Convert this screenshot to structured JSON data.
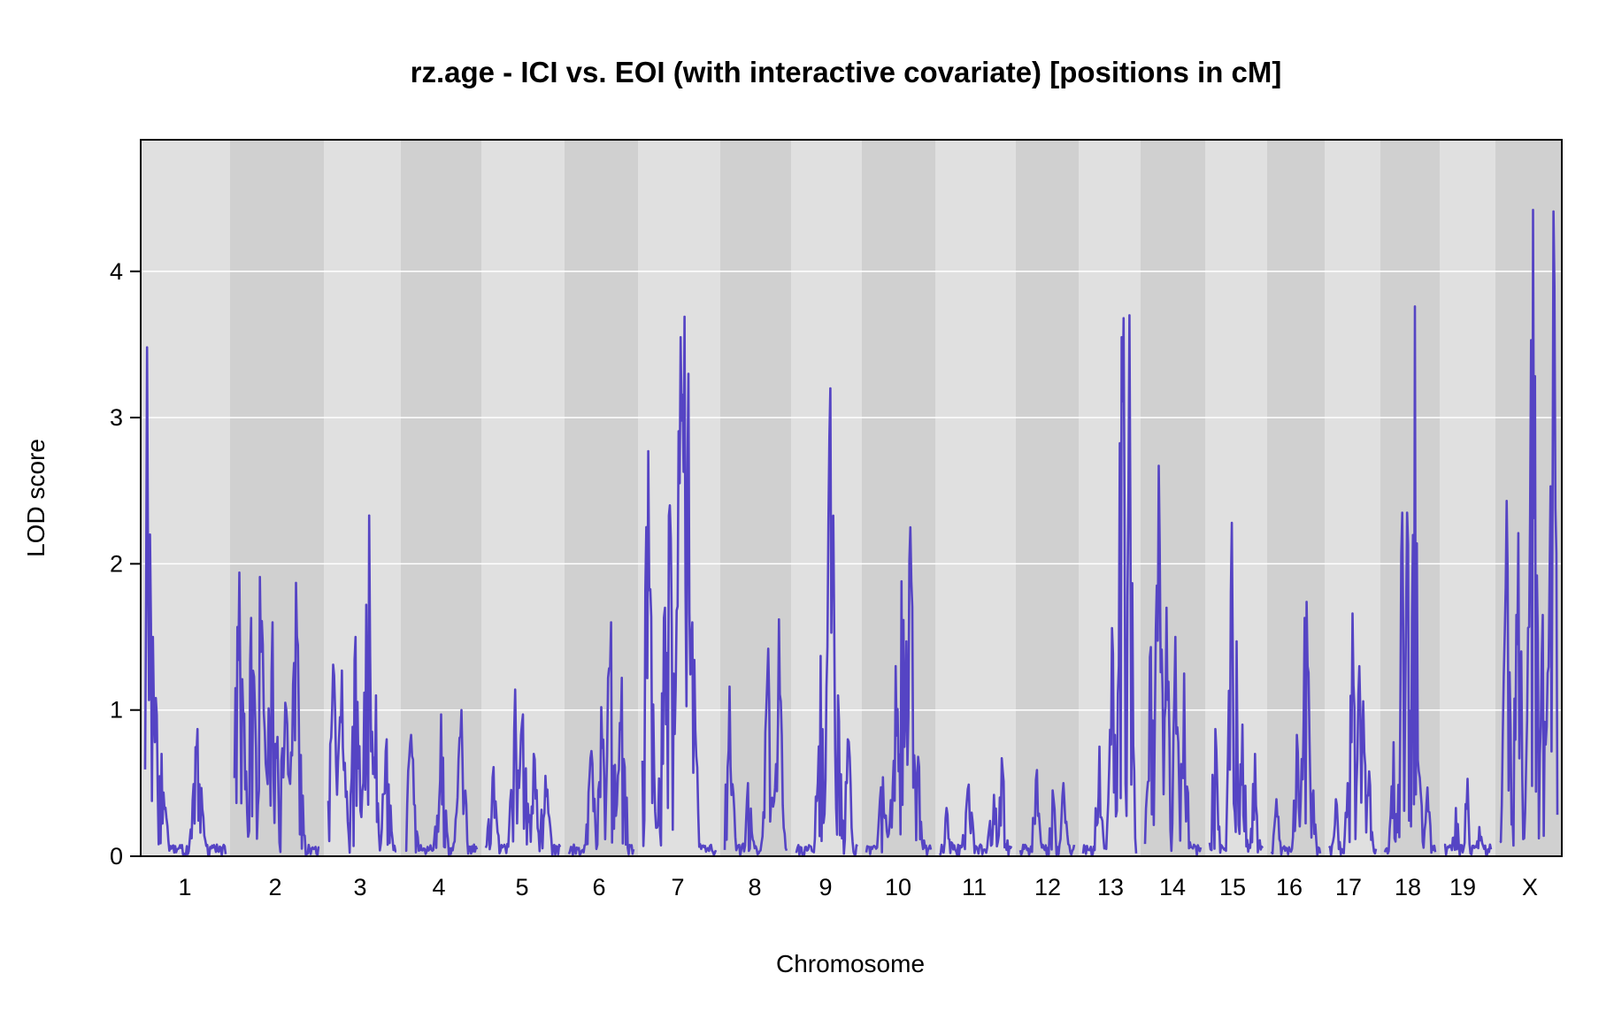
{
  "chart_data": {
    "type": "line",
    "title": "rz.age - ICI vs. EOI (with interactive covariate) [positions in cM]",
    "xlabel": "Chromosome",
    "ylabel": "LOD score",
    "ylim": [
      0,
      4.9
    ],
    "yticks": [
      0,
      1,
      2,
      3,
      4
    ],
    "grid": true,
    "line_color": "#5544c4",
    "band_colors": [
      "#e0e0e0",
      "#d0d0d0"
    ],
    "chromosomes": [
      {
        "label": "1",
        "peaks": [
          [
            0.03,
            3.48
          ],
          [
            0.06,
            2.2
          ],
          [
            0.1,
            1.5
          ],
          [
            0.2,
            0.7
          ],
          [
            0.65,
            0.87
          ]
        ]
      },
      {
        "label": "2",
        "peaks": [
          [
            0.06,
            1.94
          ],
          [
            0.2,
            1.63
          ],
          [
            0.3,
            1.91
          ],
          [
            0.45,
            1.6
          ],
          [
            0.6,
            1.05
          ],
          [
            0.72,
            1.87
          ]
        ]
      },
      {
        "label": "3",
        "peaks": [
          [
            0.07,
            1.31
          ],
          [
            0.2,
            1.27
          ],
          [
            0.4,
            1.5
          ],
          [
            0.55,
            1.72
          ],
          [
            0.6,
            2.33
          ],
          [
            0.7,
            1.1
          ],
          [
            0.85,
            0.8
          ]
        ]
      },
      {
        "label": "4",
        "peaks": [
          [
            0.08,
            0.83
          ],
          [
            0.5,
            0.97
          ],
          [
            0.78,
            1.0
          ]
        ]
      },
      {
        "label": "5",
        "peaks": [
          [
            0.1,
            0.61
          ],
          [
            0.4,
            1.14
          ],
          [
            0.5,
            0.97
          ],
          [
            0.65,
            0.7
          ],
          [
            0.8,
            0.55
          ]
        ]
      },
      {
        "label": "6",
        "peaks": [
          [
            0.35,
            0.72
          ],
          [
            0.5,
            1.02
          ],
          [
            0.6,
            1.22
          ],
          [
            0.65,
            1.6
          ],
          [
            0.82,
            1.22
          ]
        ]
      },
      {
        "label": "7",
        "peaks": [
          [
            0.08,
            2.77
          ],
          [
            0.3,
            1.7
          ],
          [
            0.37,
            2.4
          ],
          [
            0.52,
            3.55
          ],
          [
            0.57,
            3.69
          ],
          [
            0.62,
            3.3
          ],
          [
            0.68,
            1.6
          ]
        ]
      },
      {
        "label": "8",
        "peaks": [
          [
            0.08,
            1.16
          ],
          [
            0.38,
            0.5
          ],
          [
            0.7,
            1.42
          ],
          [
            0.87,
            1.62
          ]
        ]
      },
      {
        "label": "9",
        "peaks": [
          [
            0.4,
            1.37
          ],
          [
            0.57,
            3.2
          ],
          [
            0.68,
            1.1
          ],
          [
            0.85,
            0.8
          ]
        ]
      },
      {
        "label": "10",
        "peaks": [
          [
            0.25,
            0.54
          ],
          [
            0.45,
            1.3
          ],
          [
            0.55,
            1.88
          ],
          [
            0.62,
            1.47
          ],
          [
            0.68,
            2.25
          ],
          [
            0.8,
            0.68
          ]
        ]
      },
      {
        "label": "11",
        "peaks": [
          [
            0.1,
            0.33
          ],
          [
            0.4,
            0.49
          ],
          [
            0.75,
            0.42
          ],
          [
            0.86,
            0.67
          ]
        ]
      },
      {
        "label": "12",
        "peaks": [
          [
            0.3,
            0.59
          ],
          [
            0.6,
            0.45
          ],
          [
            0.8,
            0.5
          ]
        ]
      },
      {
        "label": "13",
        "peaks": [
          [
            0.3,
            0.75
          ],
          [
            0.55,
            1.56
          ],
          [
            0.72,
            3.55
          ],
          [
            0.77,
            3.68
          ],
          [
            0.87,
            3.7
          ]
        ]
      },
      {
        "label": "14",
        "peaks": [
          [
            0.1,
            1.43
          ],
          [
            0.2,
            1.55
          ],
          [
            0.25,
            2.67
          ],
          [
            0.38,
            1.7
          ],
          [
            0.55,
            1.5
          ],
          [
            0.7,
            1.25
          ]
        ]
      },
      {
        "label": "15",
        "peaks": [
          [
            0.1,
            0.87
          ],
          [
            0.42,
            2.28
          ],
          [
            0.5,
            1.47
          ],
          [
            0.62,
            0.9
          ],
          [
            0.85,
            0.7
          ]
        ]
      },
      {
        "label": "16",
        "peaks": [
          [
            0.1,
            0.39
          ],
          [
            0.52,
            0.83
          ],
          [
            0.68,
            1.63
          ],
          [
            0.72,
            1.74
          ],
          [
            0.85,
            0.45
          ]
        ]
      },
      {
        "label": "17",
        "peaks": [
          [
            0.15,
            0.39
          ],
          [
            0.4,
            0.5
          ],
          [
            0.5,
            1.66
          ],
          [
            0.65,
            1.3
          ],
          [
            0.72,
            1.06
          ],
          [
            0.85,
            0.58
          ]
        ]
      },
      {
        "label": "18",
        "peaks": [
          [
            0.18,
            0.78
          ],
          [
            0.35,
            1.1
          ],
          [
            0.35,
            2.35
          ],
          [
            0.45,
            2.35
          ],
          [
            0.6,
            3.76
          ],
          [
            0.68,
            0.58
          ],
          [
            0.85,
            0.47
          ]
        ]
      },
      {
        "label": "19",
        "peaks": [
          [
            0.25,
            0.33
          ],
          [
            0.5,
            0.53
          ],
          [
            0.75,
            0.2
          ]
        ]
      },
      {
        "label": "X",
        "peaks": [
          [
            0.12,
            2.43
          ],
          [
            0.28,
            1.65
          ],
          [
            0.33,
            2.21
          ],
          [
            0.55,
            3.53
          ],
          [
            0.58,
            4.42
          ],
          [
            0.65,
            1.92
          ],
          [
            0.75,
            1.65
          ],
          [
            0.88,
            2.53
          ],
          [
            0.93,
            4.41
          ],
          [
            0.96,
            2.38
          ]
        ]
      }
    ]
  }
}
